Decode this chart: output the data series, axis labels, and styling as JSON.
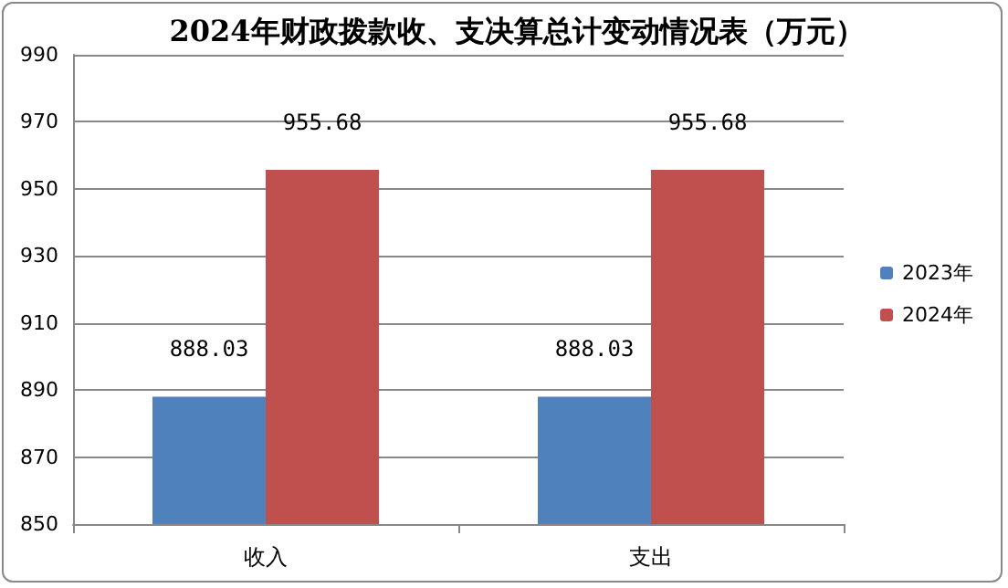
{
  "chart_data": {
    "type": "bar",
    "title": "2024年财政拨款收、支决算总计变动情况表（万元）",
    "categories": [
      "收入",
      "支出"
    ],
    "series": [
      {
        "name": "2023年",
        "color": "#4f81bd",
        "values": [
          888.03,
          888.03
        ]
      },
      {
        "name": "2024年",
        "color": "#c0504d",
        "values": [
          955.68,
          955.68
        ]
      }
    ],
    "ylim": [
      850,
      990
    ],
    "yticks": [
      850,
      870,
      890,
      910,
      930,
      950,
      970,
      990
    ],
    "grid": "y",
    "legend": "right",
    "data_labels": true
  }
}
